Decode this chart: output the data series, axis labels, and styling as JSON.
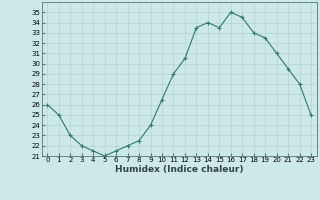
{
  "x": [
    0,
    1,
    2,
    3,
    4,
    5,
    6,
    7,
    8,
    9,
    10,
    11,
    12,
    13,
    14,
    15,
    16,
    17,
    18,
    19,
    20,
    21,
    22,
    23
  ],
  "y": [
    26,
    25,
    23,
    22,
    21.5,
    21,
    21.5,
    22,
    22.5,
    24,
    26.5,
    29,
    30.5,
    33.5,
    34,
    33.5,
    35,
    34.5,
    33,
    32.5,
    31,
    29.5,
    28,
    25
  ],
  "line_color": "#2d7a6e",
  "marker": "+",
  "marker_size": 3,
  "marker_linewidth": 0.8,
  "bg_color": "#cce8e8",
  "grid_color_major": "#b0cccc",
  "grid_color_minor": "#c4dede",
  "xlabel": "Humidex (Indice chaleur)",
  "ylim": [
    21,
    36
  ],
  "xlim": [
    -0.5,
    23.5
  ],
  "yticks": [
    21,
    22,
    23,
    24,
    25,
    26,
    27,
    28,
    29,
    30,
    31,
    32,
    33,
    34,
    35
  ],
  "xticks": [
    0,
    1,
    2,
    3,
    4,
    5,
    6,
    7,
    8,
    9,
    10,
    11,
    12,
    13,
    14,
    15,
    16,
    17,
    18,
    19,
    20,
    21,
    22,
    23
  ],
  "tick_fontsize": 5,
  "xlabel_fontsize": 6.5,
  "linewidth": 0.8
}
